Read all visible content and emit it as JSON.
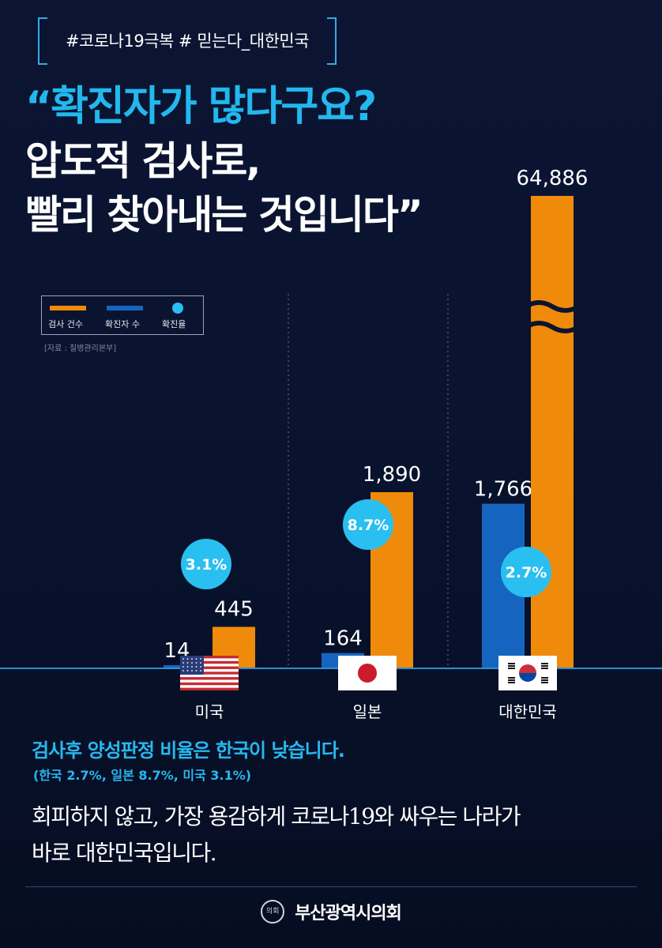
{
  "hashtag": "#코로나19극복 # 믿는다_대한민국",
  "headline": {
    "line1": "“확진자가 많다구요?",
    "line2": "압도적 검사로,",
    "line3": "빨리 찾아내는 것입니다”"
  },
  "legend": {
    "tests": "검사 건수",
    "confirmed": "확진자 수",
    "rate": "확진율"
  },
  "source": "[자료 : 질병관리본부]",
  "colors": {
    "tests": "#f08a0a",
    "confirmed": "#1565c0",
    "rate": "#29bff0",
    "accent": "#27b8ee"
  },
  "chart_data": {
    "type": "bar",
    "categories": [
      "미국",
      "일본",
      "대한민국"
    ],
    "series": [
      {
        "name": "확진자 수",
        "values": [
          14,
          164,
          1766
        ],
        "labels": [
          "14",
          "164",
          "1,766"
        ]
      },
      {
        "name": "검사 건수",
        "values": [
          445,
          1890,
          64886
        ],
        "labels": [
          "445",
          "1,890",
          "64,886"
        ]
      }
    ],
    "rates": [
      "3.1%",
      "8.7%",
      "2.7%"
    ],
    "axis_break": true,
    "legend_position": "top-left"
  },
  "summary": {
    "title": "검사후 양성판정 비율은 한국이 낮습니다.",
    "sub": "(한국 2.7%, 일본 8.7%, 미국 3.1%)"
  },
  "body": {
    "line1": "회피하지 않고, 가장 용감하게 코로나19와 싸우는 나라가",
    "line2": "바로 대한민국입니다."
  },
  "footer": {
    "seal": "의회",
    "org": "부산광역시의회"
  }
}
